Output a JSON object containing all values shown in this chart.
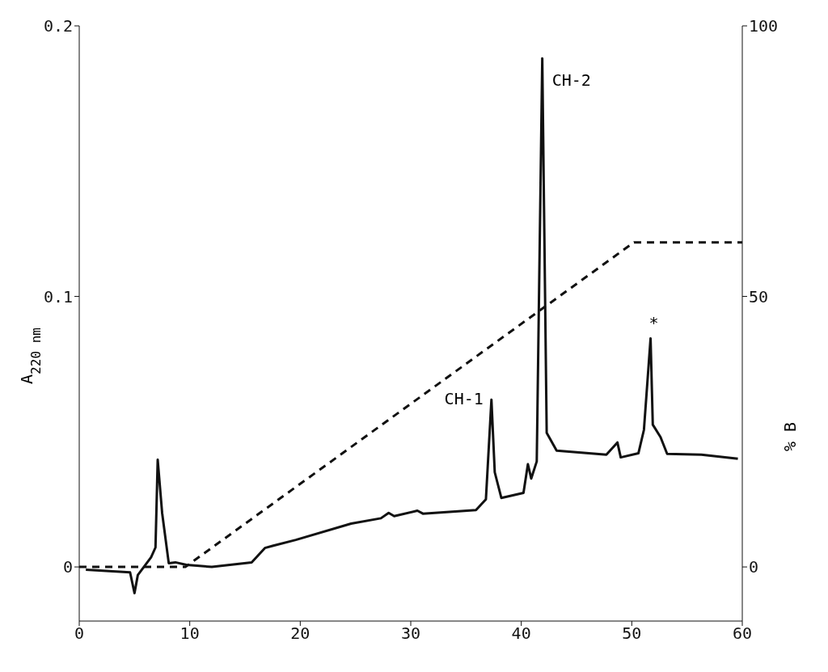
{
  "chart_data": {
    "type": "line",
    "ylabel": "A$_{220 nm}$",
    "y2label": "% B",
    "marker": "none",
    "xlim": [
      0,
      60
    ],
    "xticks": [
      0,
      10,
      20,
      30,
      40,
      50,
      60
    ],
    "ylim": [
      -0.02,
      0.2
    ],
    "yticks": [
      0,
      0.1,
      0.2
    ],
    "y2lim": [
      -10,
      100
    ],
    "y2ticks": [
      0,
      50,
      100
    ],
    "series": [
      {
        "color": "#111111",
        "line_style": "solid",
        "x": [
          0.6,
          4.6,
          5.0,
          5.3,
          6.5,
          6.9,
          7.1,
          7.5,
          8.1,
          8.7,
          9.7,
          12.0,
          15.6,
          16.8,
          17.5,
          19.6,
          24.6,
          27.3,
          28.0,
          28.5,
          30.6,
          31.1,
          35.9,
          36.8,
          37.3,
          37.6,
          38.2,
          40.2,
          40.6,
          40.9,
          41.4,
          41.9,
          42.3,
          43.2,
          47.7,
          48.7,
          49.0,
          50.6,
          51.1,
          51.7,
          51.9,
          52.6,
          53.2,
          56.3,
          59.6
        ],
        "values": [
          -0.001,
          -0.002,
          -0.0097,
          -0.003,
          0.0036,
          0.0072,
          0.0396,
          0.02,
          0.0014,
          0.0017,
          0.0008,
          0,
          0.0017,
          0.007,
          0.0078,
          0.01,
          0.016,
          0.018,
          0.02,
          0.0188,
          0.0208,
          0.0197,
          0.021,
          0.025,
          0.0618,
          0.035,
          0.0255,
          0.0274,
          0.038,
          0.0327,
          0.039,
          0.188,
          0.0496,
          0.043,
          0.0415,
          0.046,
          0.0405,
          0.042,
          0.0507,
          0.0845,
          0.0526,
          0.048,
          0.0418,
          0.0415,
          0.04
        ]
      },
      {
        "color": "#111111",
        "line_style": "dashed",
        "axis": "y2",
        "x": [
          0,
          9.6,
          50.2,
          60
        ],
        "values": [
          0,
          0,
          60,
          60
        ]
      }
    ],
    "annotations": [
      {
        "text": "CH-1",
        "x": 37.3,
        "y": 0.0618
      },
      {
        "text": "CH-2",
        "x": 41.9,
        "y": 0.188
      },
      {
        "text": "*",
        "x": 51.7,
        "y": 0.0845
      }
    ]
  }
}
